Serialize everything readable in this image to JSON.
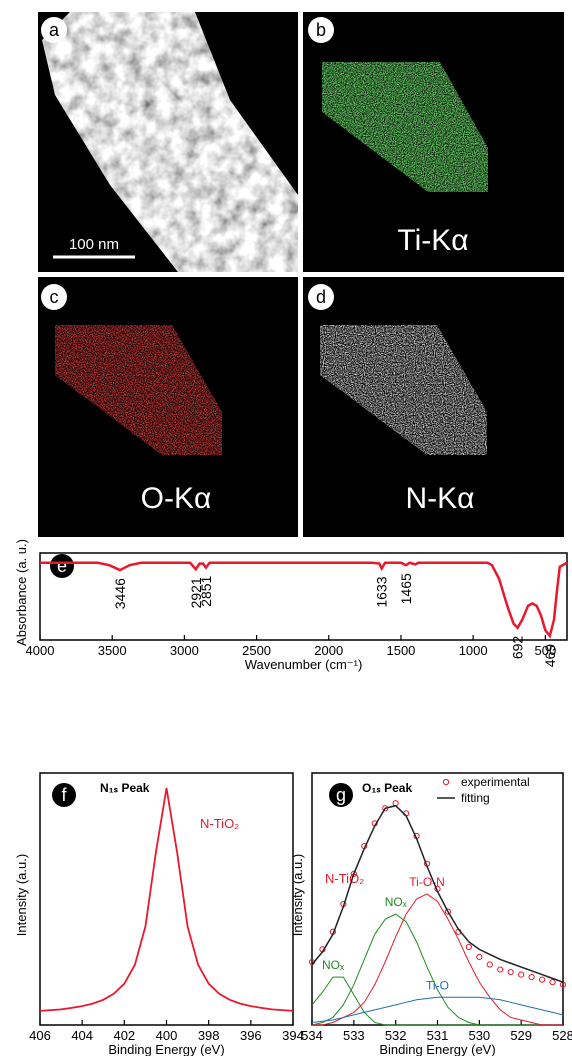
{
  "panels": [
    {
      "label": "a",
      "scale_bar": "100 nm"
    },
    {
      "label": "b",
      "element": "Ti-Kα"
    },
    {
      "label": "c",
      "element": "O-Kα"
    },
    {
      "label": "d",
      "element": "N-Kα"
    }
  ],
  "chart_data": [
    {
      "type": "line",
      "panel_label": "e",
      "xlabel": "Wavenumber (cm⁻¹)",
      "ylabel": "Absorbance (a. u.)",
      "xlim": [
        4000,
        350
      ],
      "xticks": [
        4000,
        3500,
        3000,
        2500,
        2000,
        1500,
        1000,
        500
      ],
      "ylim": [
        0,
        1.07
      ],
      "color": "#e8192c",
      "x": [
        4000,
        3600,
        3520,
        3446,
        3380,
        3300,
        2960,
        2921,
        2895,
        2870,
        2851,
        2825,
        1700,
        1650,
        1633,
        1610,
        1500,
        1465,
        1440,
        1400,
        1380,
        1360,
        900,
        870,
        820,
        760,
        720,
        692,
        660,
        620,
        590,
        560,
        530,
        500,
        469,
        440,
        420,
        400,
        350
      ],
      "values": [
        0.95,
        0.95,
        0.92,
        0.86,
        0.92,
        0.95,
        0.95,
        0.87,
        0.94,
        0.94,
        0.89,
        0.95,
        0.95,
        0.94,
        0.88,
        0.95,
        0.95,
        0.92,
        0.95,
        0.93,
        0.95,
        0.95,
        0.95,
        0.92,
        0.75,
        0.4,
        0.2,
        0.15,
        0.25,
        0.42,
        0.45,
        0.42,
        0.3,
        0.12,
        0.05,
        0.25,
        0.6,
        0.9,
        0.95
      ],
      "peaks": [
        3446,
        2921,
        2851,
        1633,
        1465,
        692,
        469
      ]
    },
    {
      "type": "line",
      "panel_label": "f",
      "title": "N₁ₛ Peak",
      "annotation": "N-TiO₂",
      "xlabel": "Binding Energy (eV)",
      "ylabel": "Intensity (a.u.)",
      "xlim": [
        406,
        394
      ],
      "xticks": [
        406,
        404,
        402,
        400,
        398,
        396,
        394
      ],
      "ylim": [
        0,
        1
      ],
      "color": "#e8192c",
      "x": [
        406,
        405.5,
        405,
        404.5,
        404,
        403.5,
        403,
        402.5,
        402,
        401.5,
        401,
        400.5,
        400,
        399.5,
        399,
        398.5,
        398,
        397.5,
        397,
        396.5,
        396,
        395.5,
        395,
        394.5,
        394
      ],
      "values": [
        0.056,
        0.059,
        0.062,
        0.068,
        0.075,
        0.085,
        0.1,
        0.124,
        0.164,
        0.239,
        0.391,
        0.687,
        0.94,
        0.687,
        0.391,
        0.239,
        0.164,
        0.124,
        0.1,
        0.085,
        0.075,
        0.068,
        0.062,
        0.059,
        0.056
      ]
    },
    {
      "type": "line",
      "panel_label": "g",
      "title": "O₁ₛ Peak",
      "annotation": "N-TiO₂",
      "xlabel": "Binding Energy (eV)",
      "ylabel": "Intensity (a.u.)",
      "xlim": [
        534,
        528
      ],
      "xticks": [
        534,
        533,
        532,
        531,
        530,
        529,
        528
      ],
      "ylim": [
        0,
        1
      ],
      "x": [
        534,
        533.75,
        533.5,
        533.25,
        533,
        532.75,
        532.5,
        532.25,
        532,
        531.75,
        531.5,
        531.25,
        531,
        530.75,
        530.5,
        530.25,
        530,
        529.75,
        529.5,
        529.25,
        529,
        528.75,
        528.5,
        528.25,
        528
      ],
      "series": [
        {
          "name": "experimental",
          "color": "#e8192c",
          "marker": "circle",
          "values": [
            0.25,
            0.3,
            0.37,
            0.48,
            0.6,
            0.71,
            0.8,
            0.86,
            0.88,
            0.84,
            0.75,
            0.64,
            0.54,
            0.45,
            0.37,
            0.31,
            0.27,
            0.24,
            0.22,
            0.21,
            0.2,
            0.19,
            0.18,
            0.17,
            0.16
          ]
        },
        {
          "name": "fitting",
          "color": "#222222",
          "values": [
            0.24,
            0.29,
            0.36,
            0.47,
            0.6,
            0.7,
            0.79,
            0.86,
            0.87,
            0.83,
            0.74,
            0.63,
            0.53,
            0.45,
            0.38,
            0.33,
            0.3,
            0.28,
            0.26,
            0.245,
            0.23,
            0.215,
            0.2,
            0.185,
            0.17
          ]
        }
      ],
      "components": [
        {
          "label": "NOₓ",
          "color": "#1f8a1f",
          "values": [
            0.08,
            0.13,
            0.19,
            0.19,
            0.12,
            0.05,
            0.01,
            0,
            0,
            0,
            0,
            0,
            0,
            0,
            0,
            0,
            0,
            0,
            0,
            0,
            0,
            0,
            0,
            0,
            0
          ]
        },
        {
          "label": "NOₓ",
          "color": "#1f8a1f",
          "values": [
            0,
            0.01,
            0.03,
            0.08,
            0.16,
            0.26,
            0.36,
            0.42,
            0.44,
            0.41,
            0.33,
            0.23,
            0.14,
            0.07,
            0.03,
            0.01,
            0,
            0,
            0,
            0,
            0,
            0,
            0,
            0,
            0
          ]
        },
        {
          "label": "Ti-O-N",
          "color": "#e8192c",
          "values": [
            0,
            0,
            0.01,
            0.03,
            0.05,
            0.09,
            0.16,
            0.25,
            0.35,
            0.44,
            0.5,
            0.52,
            0.49,
            0.42,
            0.34,
            0.25,
            0.17,
            0.11,
            0.06,
            0.03,
            0.02,
            0.01,
            0,
            0,
            0
          ]
        },
        {
          "label": "Ti-O",
          "color": "#1f6fb5",
          "values": [
            0.01,
            0.015,
            0.02,
            0.03,
            0.04,
            0.05,
            0.06,
            0.07,
            0.08,
            0.09,
            0.1,
            0.105,
            0.11,
            0.11,
            0.11,
            0.11,
            0.11,
            0.105,
            0.1,
            0.09,
            0.08,
            0.07,
            0.06,
            0.05,
            0.04
          ]
        }
      ]
    }
  ]
}
